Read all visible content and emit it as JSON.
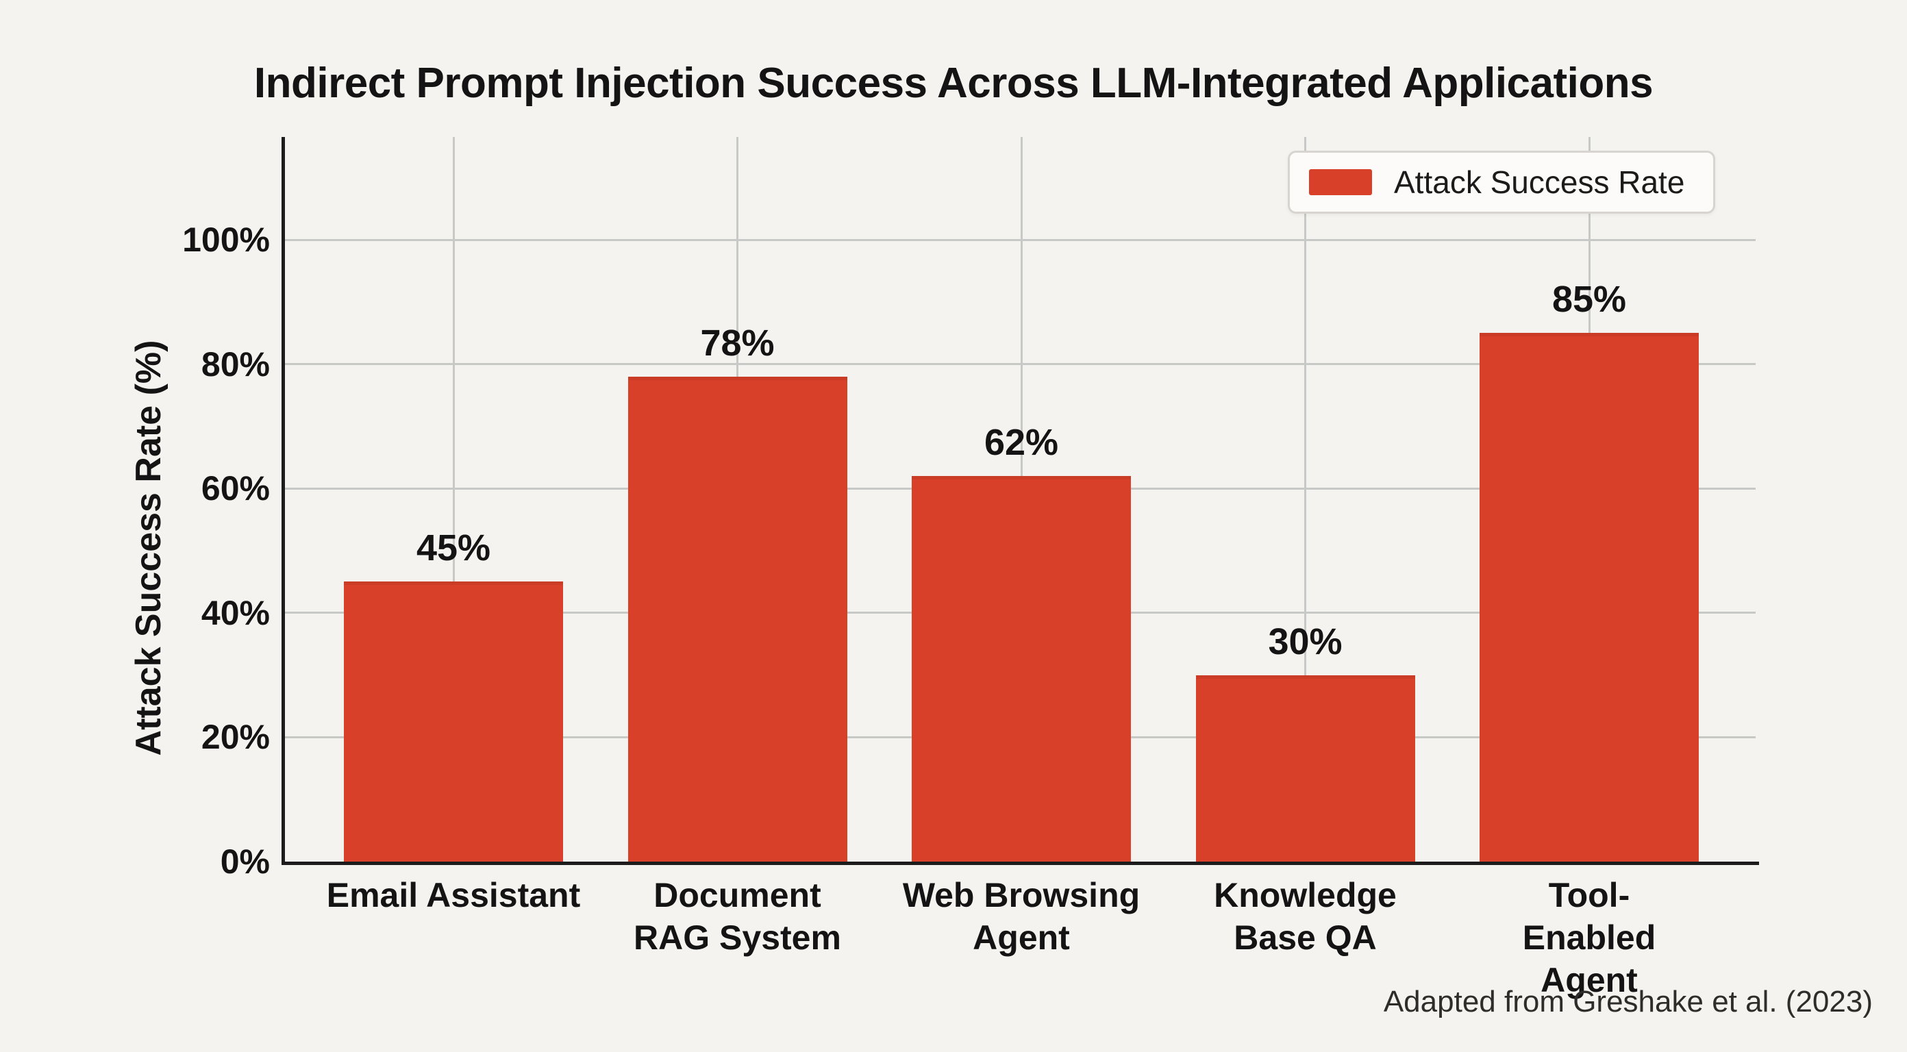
{
  "chart_data": {
    "type": "bar",
    "title": "Indirect Prompt Injection Success Across LLM-Integrated Applications",
    "categories": [
      "Email Assistant",
      "Document\nRAG System",
      "Web Browsing\nAgent",
      "Knowledge\nBase QA",
      "Tool-Enabled\nAgent"
    ],
    "values": [
      45,
      78,
      62,
      30,
      85
    ],
    "value_labels": [
      "45%",
      "78%",
      "62%",
      "30%",
      "85%"
    ],
    "series": [
      {
        "name": "Attack Success Rate",
        "values": [
          45,
          78,
          62,
          30,
          85
        ]
      }
    ],
    "xlabel": "",
    "ylabel": "Attack Success Rate (%)",
    "ylim": [
      0,
      100
    ],
    "yticks": [
      0,
      20,
      40,
      60,
      80,
      100
    ],
    "ytick_labels": [
      "0%",
      "20%",
      "40%",
      "60%",
      "80%",
      "100%"
    ],
    "grid": "both",
    "legend": {
      "position": "top-right",
      "entries": [
        {
          "label": "Attack Success Rate",
          "color": "#D8402A"
        }
      ]
    },
    "attribution": "Adapted from Greshake et al. (2023)",
    "colors": {
      "bar": "#D8402A",
      "background": "#F5F3EF",
      "grid": "#C7C9C6",
      "axis": "#1C1C1C",
      "text": "#141414",
      "legend_bg": "#FCFBF9",
      "legend_border": "#D8D5D0",
      "attribution_text": "#2E2D2B"
    }
  }
}
